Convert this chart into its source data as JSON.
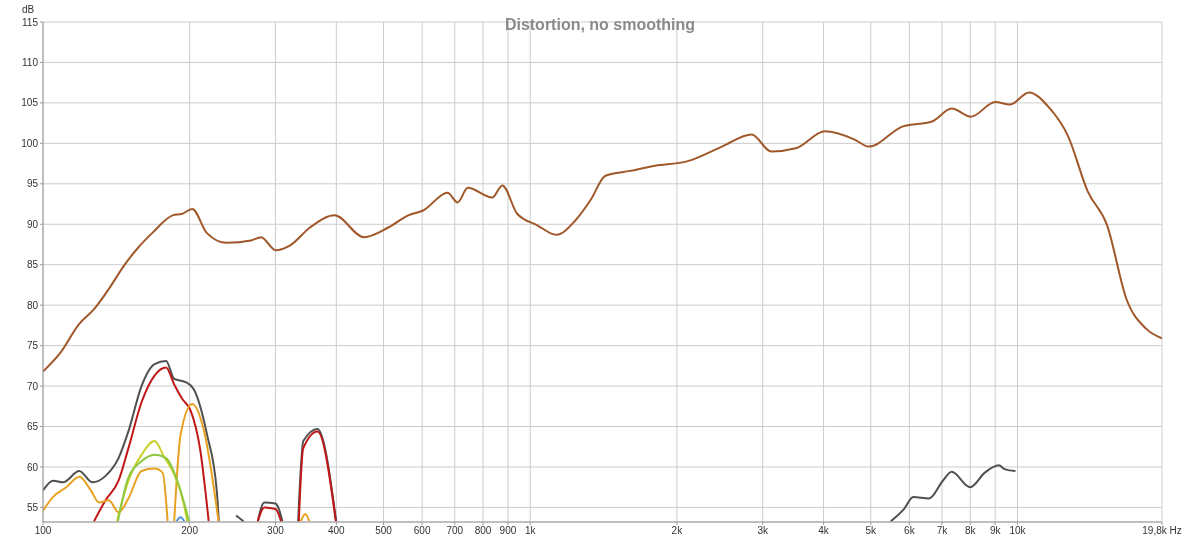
{
  "chart_data": {
    "type": "line",
    "title": "Distortion, no smoothing",
    "ylabel": "dB",
    "log": "x",
    "grid": true,
    "marker": "none",
    "line_style": "solid",
    "xlim": [
      100,
      19800
    ],
    "ylim": [
      53.2,
      115
    ],
    "xticks": [
      100,
      200,
      300,
      400,
      500,
      600,
      700,
      800,
      900,
      {
        "value": 1000,
        "label": "1k"
      },
      {
        "value": 2000,
        "label": "2k"
      },
      {
        "value": 3000,
        "label": "3k"
      },
      {
        "value": 4000,
        "label": "4k"
      },
      {
        "value": 5000,
        "label": "5k"
      },
      {
        "value": 6000,
        "label": "6k"
      },
      {
        "value": 7000,
        "label": "7k"
      },
      {
        "value": 8000,
        "label": "8k"
      },
      {
        "value": 9000,
        "label": "9k"
      },
      {
        "value": 10000,
        "label": "10k"
      },
      {
        "value": 19800,
        "label": "19,8k Hz"
      }
    ],
    "yticks": [
      55,
      60,
      65,
      70,
      75,
      80,
      85,
      90,
      95,
      100,
      105,
      110,
      115
    ],
    "series": [
      {
        "color": "#a0582a",
        "x": [
          100,
          108.2,
          118.7,
          127.3,
          136.5,
          146.3,
          156.7,
          168.1,
          184.5,
          193.2,
          202.4,
          217,
          238,
          267.4,
          280.3,
          300.2,
          321.7,
          353.2,
          396.9,
          455.6,
          511.3,
          561.9,
          602.8,
          676.6,
          709.6,
          744.3,
          835.6,
          876.4,
          940.2,
          1032,
          1132,
          1239,
          1330,
          1427,
          1604,
          1793,
          2105,
          2475,
          2847,
          3121,
          3508,
          4027,
          4623,
          4951,
          5820,
          6679,
          7328,
          8030,
          9000,
          9650,
          10563,
          11580,
          12700,
          13930,
          15270,
          16750,
          18360,
          19800
        ],
        "values": [
          71.8,
          74.0,
          77.7,
          79.5,
          82.0,
          84.8,
          87.1,
          89.0,
          91.1,
          91.3,
          91.9,
          88.9,
          87.7,
          88.0,
          88.4,
          86.8,
          87.4,
          89.6,
          91.1,
          88.4,
          89.6,
          91.1,
          91.7,
          93.9,
          92.7,
          94.5,
          93.3,
          94.8,
          91.3,
          89.9,
          88.7,
          90.5,
          93.0,
          96.0,
          96.6,
          97.2,
          97.8,
          99.6,
          101.1,
          99.0,
          99.4,
          101.5,
          100.5,
          99.6,
          102.1,
          102.7,
          104.3,
          103.3,
          105.1,
          104.8,
          106.3,
          104.5,
          100.9,
          94.1,
          89.9,
          80.7,
          77.1,
          75.9
        ]
      },
      {
        "color": "#505050",
        "x": [
          100,
          104.9,
          109.9,
          118.7,
          126.3,
          134.4,
          142.9,
          149.7,
          159.3,
          169.4,
          178.9,
          185.9,
          196.1,
          203.9,
          217.1,
          227.3,
          229.5,
          240,
          249,
          258,
          270,
          276,
          284.5,
          300,
          310,
          320,
          334,
          342.2,
          366,
          399.7,
          450,
          5495,
          5848,
          6112,
          6586,
          7029,
          7328,
          7997,
          8571,
          9155,
          9437,
          9908
        ],
        "values": [
          57.1,
          58.3,
          58.1,
          59.5,
          58.1,
          58.9,
          61.1,
          64.4,
          70.0,
          72.7,
          73.1,
          70.9,
          70.5,
          69.6,
          64.0,
          57.1,
          53.3,
          null,
          54.0,
          53.3,
          null,
          53.3,
          55.6,
          55.5,
          53.3,
          null,
          53.3,
          63.2,
          64.7,
          53.3,
          null,
          53.3,
          54.8,
          56.3,
          56.1,
          58.3,
          59.4,
          57.5,
          59.3,
          60.2,
          59.7,
          59.5
        ]
      },
      {
        "color": "#c01818",
        "x": [
          127.3,
          134.4,
          142.9,
          149.7,
          159.3,
          169.4,
          178.9,
          185.9,
          193.2,
          200.8,
          210,
          218.8,
          250,
          276,
          284.5,
          300,
          308,
          320,
          335,
          342,
          366,
          399
        ],
        "values": [
          53.3,
          55.9,
          58.3,
          62.3,
          68.0,
          71.3,
          72.3,
          70.2,
          68.4,
          67.0,
          62.3,
          53.3,
          null,
          53.3,
          55.0,
          54.8,
          53.3,
          null,
          53.3,
          62.3,
          64.4,
          53.3
        ]
      },
      {
        "color": "#e8a020",
        "x": [
          100,
          104.9,
          111.6,
          118.7,
          125.4,
          130.3,
          136.5,
          142.9,
          149.7,
          159.3,
          169.4,
          176,
          180.2,
          183,
          185.9,
          191.6,
          202.4,
          213.8,
          229.2,
          300,
          338,
          345.5,
          352
        ],
        "values": [
          54.6,
          56.3,
          57.5,
          58.8,
          57.1,
          55.6,
          55.9,
          54.4,
          56.1,
          59.5,
          59.8,
          59.3,
          53.3,
          null,
          53.3,
          64.0,
          67.8,
          64.6,
          53.3,
          null,
          53.3,
          54.2,
          53.3
        ]
      },
      {
        "color": "#c8d028",
        "x": [
          141.9,
          149.7,
          159.3,
          169.4,
          177.1,
          185.9,
          194.6,
          197.7
        ],
        "values": [
          53.3,
          58.3,
          61.5,
          63.2,
          61.3,
          59.1,
          55.4,
          53.3
        ]
      },
      {
        "color": "#8cc840",
        "x": [
          142.5,
          149.7,
          159.3,
          169.4,
          178.9,
          188.7,
          199.4
        ],
        "values": [
          53.3,
          58.7,
          60.7,
          61.5,
          61.1,
          58.3,
          53.3
        ]
      },
      {
        "color": "#5090e0",
        "x": [
          188,
          191.6,
          195
        ],
        "values": [
          53.3,
          53.8,
          53.3
        ]
      }
    ]
  }
}
